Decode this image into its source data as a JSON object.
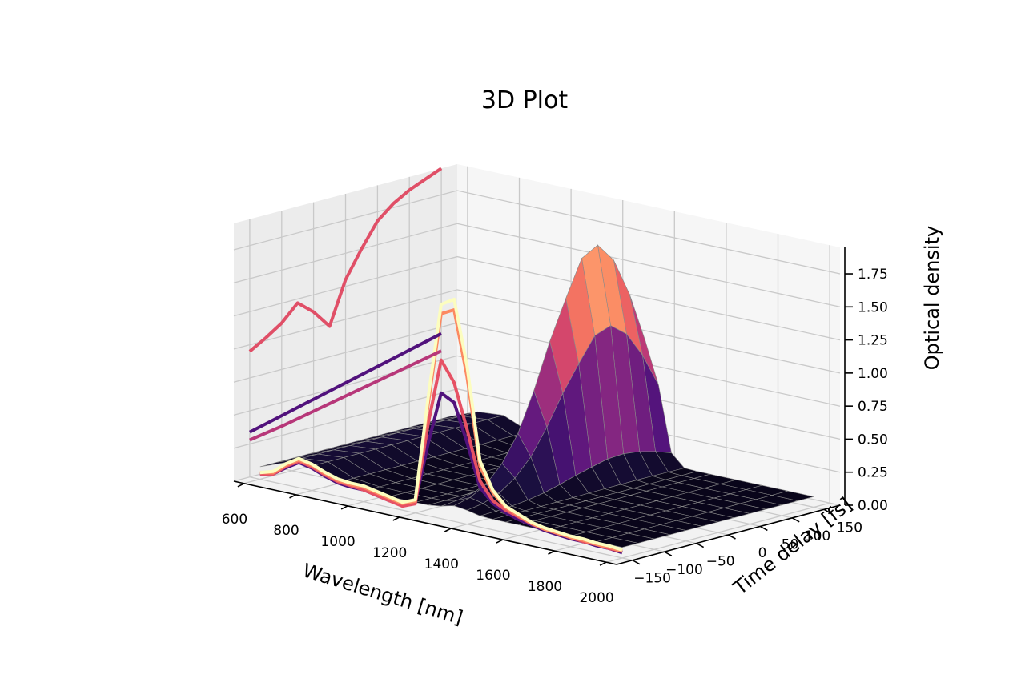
{
  "chart_data": {
    "type": "surface",
    "title": "3D Plot",
    "xlabel": "Wavelength [nm]",
    "ylabel": "Time delay [fs]",
    "zlabel": "Optical density",
    "x_ticks": [
      "600",
      "800",
      "1000",
      "1200",
      "1400",
      "1600",
      "1800",
      "2000"
    ],
    "y_ticks": [
      "−150",
      "−100",
      "−50",
      "0",
      "50",
      "100",
      "150"
    ],
    "z_ticks": [
      "0.00",
      "0.25",
      "0.50",
      "0.75",
      "1.00",
      "1.25",
      "1.50",
      "1.75"
    ],
    "xlim": [
      560,
      2040
    ],
    "ylim": [
      -175,
      175
    ],
    "zlim": [
      0.0,
      1.95
    ],
    "colormap": "magma",
    "grid": true,
    "surface": {
      "wavelength_nm": [
        600,
        700,
        800,
        900,
        1000,
        1100,
        1200,
        1250,
        1300,
        1350,
        1400,
        1450,
        1500,
        1550,
        1600,
        1700,
        1800,
        1900,
        2000
      ],
      "time_delay_fs": [
        -150,
        -125,
        -100,
        -75,
        -50,
        -25,
        0,
        25,
        50,
        75,
        100,
        125,
        150
      ],
      "peak_wavelength_nm": 1360,
      "peak_width_nm": 60,
      "peak_optical_density_by_delay": [
        0.12,
        0.15,
        0.22,
        0.35,
        0.55,
        0.85,
        1.2,
        1.5,
        1.78,
        1.85,
        1.7,
        1.4,
        1.0
      ],
      "baseline_optical_density": 0.08
    },
    "series": [
      {
        "time_delay_fs": -150,
        "color": "#fcfdbf",
        "wavelength_nm": [
          600,
          650,
          700,
          750,
          800,
          850,
          900,
          950,
          1000,
          1050,
          1100,
          1150,
          1200,
          1250,
          1300,
          1350,
          1400,
          1450,
          1500,
          1550,
          1600,
          1650,
          1700,
          1750,
          1800,
          1850,
          1900,
          1950,
          2000
        ],
        "optical_density": [
          0.05,
          0.08,
          0.16,
          0.22,
          0.2,
          0.16,
          0.13,
          0.12,
          0.12,
          0.1,
          0.08,
          0.06,
          0.1,
          0.9,
          1.62,
          1.68,
          1.2,
          0.5,
          0.3,
          0.2,
          0.16,
          0.12,
          0.1,
          0.09,
          0.08,
          0.08,
          0.07,
          0.07,
          0.06
        ]
      },
      {
        "time_delay_fs": -150,
        "color": "#fc8961",
        "wavelength_nm": [
          600,
          650,
          700,
          750,
          800,
          850,
          900,
          950,
          1000,
          1050,
          1100,
          1150,
          1200,
          1250,
          1300,
          1350,
          1400,
          1450,
          1500,
          1550,
          1600,
          1650,
          1700,
          1750,
          1800,
          1850,
          1900,
          1950,
          2000
        ],
        "optical_density": [
          0.05,
          0.07,
          0.15,
          0.21,
          0.19,
          0.15,
          0.12,
          0.11,
          0.11,
          0.09,
          0.07,
          0.05,
          0.09,
          0.85,
          1.55,
          1.6,
          1.12,
          0.46,
          0.28,
          0.19,
          0.15,
          0.11,
          0.09,
          0.08,
          0.07,
          0.07,
          0.06,
          0.06,
          0.05
        ]
      },
      {
        "time_delay_fs": -150,
        "color": "#e65164",
        "wavelength_nm": [
          600,
          650,
          700,
          750,
          800,
          850,
          900,
          950,
          1000,
          1050,
          1100,
          1150,
          1200,
          1250,
          1300,
          1350,
          1400,
          1450,
          1500,
          1550,
          1600,
          1650,
          1700,
          1750,
          1800,
          1850,
          1900,
          1950,
          2000
        ],
        "optical_density": [
          0.04,
          0.06,
          0.14,
          0.2,
          0.18,
          0.14,
          0.11,
          0.1,
          0.09,
          0.07,
          0.05,
          0.03,
          0.07,
          0.7,
          1.2,
          1.05,
          0.72,
          0.35,
          0.22,
          0.17,
          0.14,
          0.11,
          0.09,
          0.08,
          0.07,
          0.06,
          0.06,
          0.05,
          0.05
        ]
      },
      {
        "time_delay_fs": -150,
        "color": "#51127c",
        "wavelength_nm": [
          600,
          650,
          700,
          750,
          800,
          850,
          900,
          950,
          1000,
          1050,
          1100,
          1150,
          1200,
          1250,
          1300,
          1350,
          1400,
          1450,
          1500,
          1550,
          1600,
          1650,
          1700,
          1750,
          1800,
          1850,
          1900,
          1950,
          2000
        ],
        "optical_density": [
          0.04,
          0.06,
          0.13,
          0.19,
          0.17,
          0.13,
          0.1,
          0.09,
          0.09,
          0.07,
          0.05,
          0.04,
          0.08,
          0.55,
          0.95,
          0.9,
          0.62,
          0.3,
          0.2,
          0.15,
          0.12,
          0.1,
          0.08,
          0.07,
          0.06,
          0.06,
          0.05,
          0.05,
          0.04
        ]
      }
    ],
    "wall_projections": [
      {
        "plane": "time-delay",
        "color": "#e04f67",
        "time_delay_fs": [
          -150,
          -125,
          -100,
          -75,
          -50,
          -25,
          0,
          25,
          50,
          75,
          100,
          125,
          150
        ],
        "optical_density": [
          0.95,
          1.02,
          1.1,
          1.22,
          1.12,
          0.98,
          1.3,
          1.5,
          1.68,
          1.78,
          1.85,
          1.9,
          1.95
        ]
      },
      {
        "plane": "time-delay",
        "color": "#51127c",
        "time_delay_fs": [
          -150,
          -100,
          -50,
          0,
          50,
          100,
          150
        ],
        "optical_density": [
          0.34,
          0.4,
          0.46,
          0.52,
          0.58,
          0.64,
          0.7
        ]
      },
      {
        "plane": "time-delay",
        "color": "#b73779",
        "time_delay_fs": [
          -150,
          -100,
          -50,
          0,
          50,
          100,
          150
        ],
        "optical_density": [
          0.28,
          0.32,
          0.37,
          0.42,
          0.47,
          0.52,
          0.57
        ]
      }
    ]
  }
}
